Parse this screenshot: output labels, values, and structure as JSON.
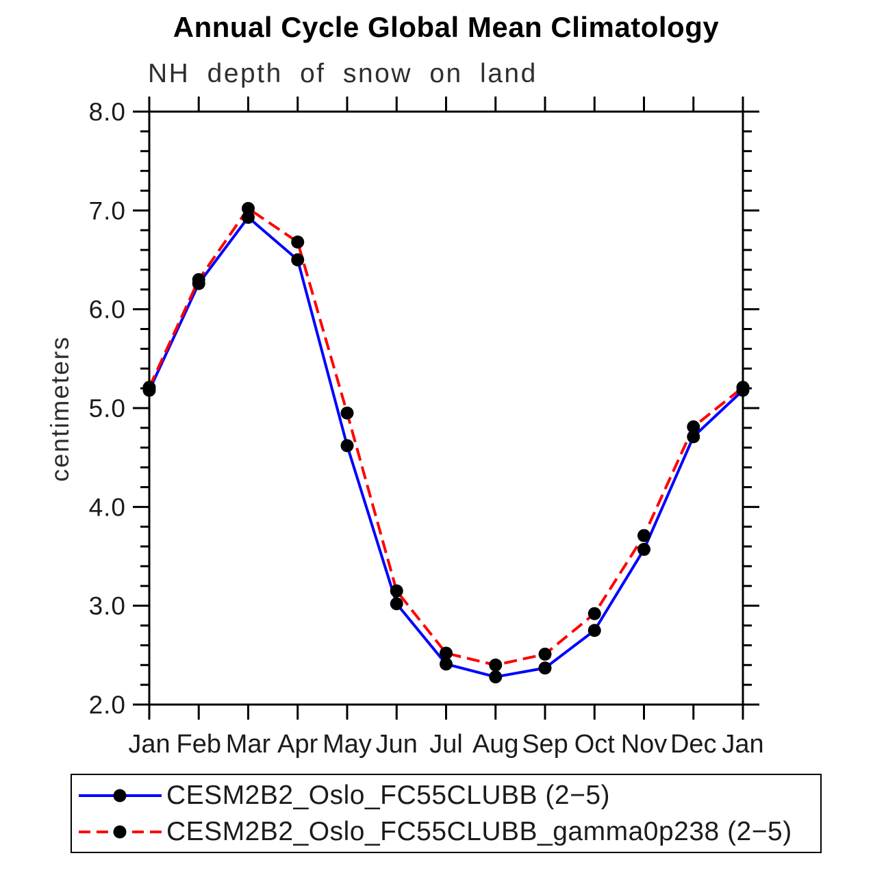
{
  "chart_data": {
    "type": "line",
    "title": "Annual Cycle Global Mean Climatology",
    "subtitle": "NH depth of snow on land",
    "xlabel": "",
    "ylabel": "centimeters",
    "categories": [
      "Jan",
      "Feb",
      "Mar",
      "Apr",
      "May",
      "Jun",
      "Jul",
      "Aug",
      "Sep",
      "Oct",
      "Nov",
      "Dec",
      "Jan"
    ],
    "ylim": [
      2.0,
      8.0
    ],
    "ytick_step": 1.0,
    "yminor_step": 0.2,
    "ytick_labels": [
      "2.0",
      "3.0",
      "4.0",
      "5.0",
      "6.0",
      "7.0",
      "8.0"
    ],
    "grid": false,
    "legend_position": "bottom-left-box",
    "background_color": "#ffffff",
    "axis_color": "#000000",
    "series": [
      {
        "name": "CESM2B2_Oslo_FC55CLUBB (2−5)",
        "color": "#0000ff",
        "style": "solid",
        "marker": "circle",
        "marker_color": "#000000",
        "values": [
          5.18,
          6.26,
          6.93,
          6.5,
          4.62,
          3.02,
          2.41,
          2.28,
          2.37,
          2.75,
          3.57,
          4.71,
          5.18
        ]
      },
      {
        "name": "CESM2B2_Oslo_FC55CLUBB_gamma0p238 (2−5)",
        "color": "#ff0000",
        "style": "dashed",
        "marker": "circle",
        "marker_color": "#000000",
        "values": [
          5.21,
          6.3,
          7.02,
          6.68,
          4.95,
          3.15,
          2.52,
          2.4,
          2.51,
          2.92,
          3.71,
          4.81,
          5.21
        ]
      }
    ]
  }
}
